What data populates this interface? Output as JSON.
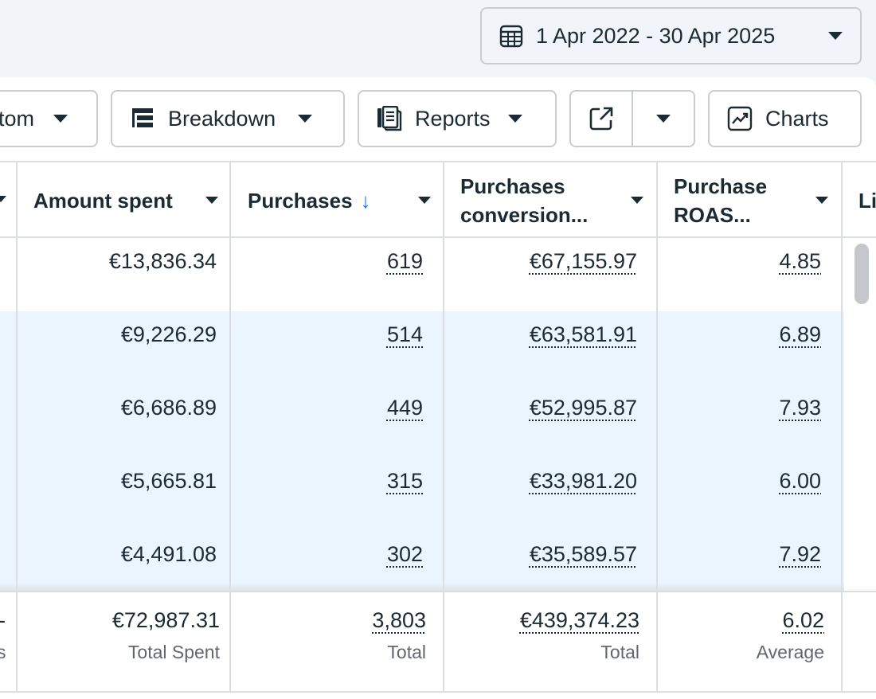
{
  "date_range": {
    "label": "1 Apr 2022 - 30 Apr 2025"
  },
  "toolbar": {
    "custom_label": "tom",
    "breakdown_label": "Breakdown",
    "reports_label": "Reports",
    "charts_label": "Charts"
  },
  "table": {
    "columns": [
      {
        "label": "Amount spent"
      },
      {
        "label": "Purchases",
        "sort_icon": "↓"
      },
      {
        "label_line1": "Purchases",
        "label_line2": "conversion..."
      },
      {
        "label_line1": "Purchase",
        "label_line2": "ROAS..."
      },
      {
        "label": "Li"
      }
    ],
    "rows": [
      {
        "amount": "€13,836.34",
        "purchases": "619",
        "conversion": "€67,155.97",
        "roas": "4.85"
      },
      {
        "amount": "€9,226.29",
        "purchases": "514",
        "conversion": "€63,581.91",
        "roas": "6.89"
      },
      {
        "amount": "€6,686.89",
        "purchases": "449",
        "conversion": "€52,995.87",
        "roas": "7.93"
      },
      {
        "amount": "€5,665.81",
        "purchases": "315",
        "conversion": "€33,981.20",
        "roas": "6.00"
      },
      {
        "amount": "€4,491.08",
        "purchases": "302",
        "conversion": "€35,589.57",
        "roas": "7.92"
      }
    ],
    "totals": {
      "left_dash": "-",
      "left_label": "s",
      "amount": "€72,987.31",
      "amount_label": "Total Spent",
      "purchases": "3,803",
      "purchases_label": "Total",
      "conversion": "€439,374.23",
      "conversion_label": "Total",
      "roas": "6.02",
      "roas_label": "Average"
    }
  },
  "colors": {
    "accent": "#1877f2",
    "row_highlight": "#ebf5ff",
    "border": "#c9ccd1"
  }
}
